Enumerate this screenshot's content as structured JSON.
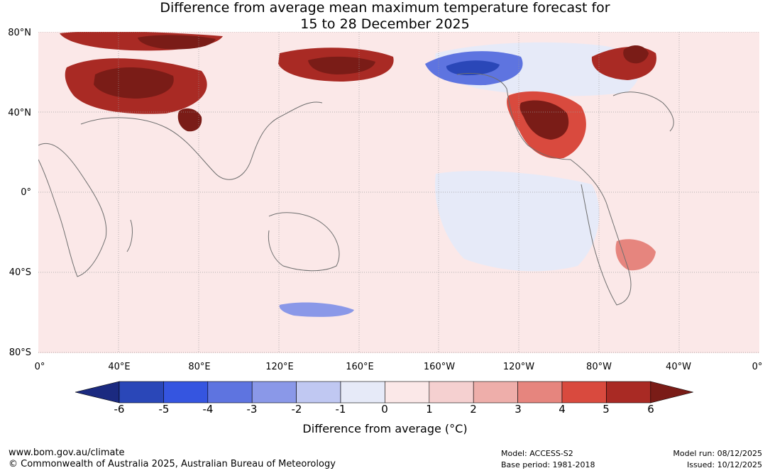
{
  "title": {
    "line1": "Difference from average mean maximum temperature forecast for",
    "line2": "15 to 28 December 2025"
  },
  "map": {
    "lat_labels": [
      "80°N",
      "40°N",
      "0°",
      "40°S",
      "80°S"
    ],
    "lon_labels": [
      "0°",
      "40°E",
      "80°E",
      "120°E",
      "160°E",
      "160°W",
      "120°W",
      "80°W",
      "40°W",
      "0°"
    ],
    "regions": [
      {
        "name": "central-asia-warm",
        "value": 5
      },
      {
        "name": "central-asia-core",
        "value": 6
      },
      {
        "name": "arctic-europe-warm",
        "value": 5
      },
      {
        "name": "scandinavia-warm",
        "value": 6
      },
      {
        "name": "east-siberia-warm",
        "value": 5
      },
      {
        "name": "east-siberia-core",
        "value": 6
      },
      {
        "name": "west-china-warm",
        "value": 6
      },
      {
        "name": "alaska-cool",
        "value": -4
      },
      {
        "name": "alaska-core",
        "value": -6
      },
      {
        "name": "canada-cool",
        "value": -1
      },
      {
        "name": "western-us-warm",
        "value": 4
      },
      {
        "name": "western-us-core",
        "value": 6
      },
      {
        "name": "greenland-warm",
        "value": 5
      },
      {
        "name": "greenland-core",
        "value": 6
      },
      {
        "name": "equatorial-pacific-cool",
        "value": -1
      },
      {
        "name": "southern-ocean-cool",
        "value": -3
      },
      {
        "name": "south-america-warm",
        "value": 3
      }
    ]
  },
  "colorbar": {
    "ticks": [
      "-6",
      "-5",
      "-4",
      "-3",
      "-2",
      "-1",
      "0",
      "1",
      "2",
      "3",
      "4",
      "5",
      "6"
    ],
    "colors": [
      "#1b2a80",
      "#2a47b8",
      "#3555e0",
      "#5e74e0",
      "#8a98e8",
      "#c0c8f2",
      "#e6eaf8",
      "#fbe8e8",
      "#f5d0d0",
      "#eeaeaa",
      "#e6857e",
      "#d94a3e",
      "#a92a24",
      "#7a1c17"
    ],
    "label": "Difference from average (°C)"
  },
  "footer": {
    "website": "www.bom.gov.au/climate",
    "copyright": "© Commonwealth of Australia 2025, Australian Bureau of Meteorology",
    "model": "Model: ACCESS-S2",
    "base_period": "Base period: 1981-2018",
    "model_run": "Model run: 08/12/2025",
    "issued": "Issued: 10/12/2025"
  }
}
